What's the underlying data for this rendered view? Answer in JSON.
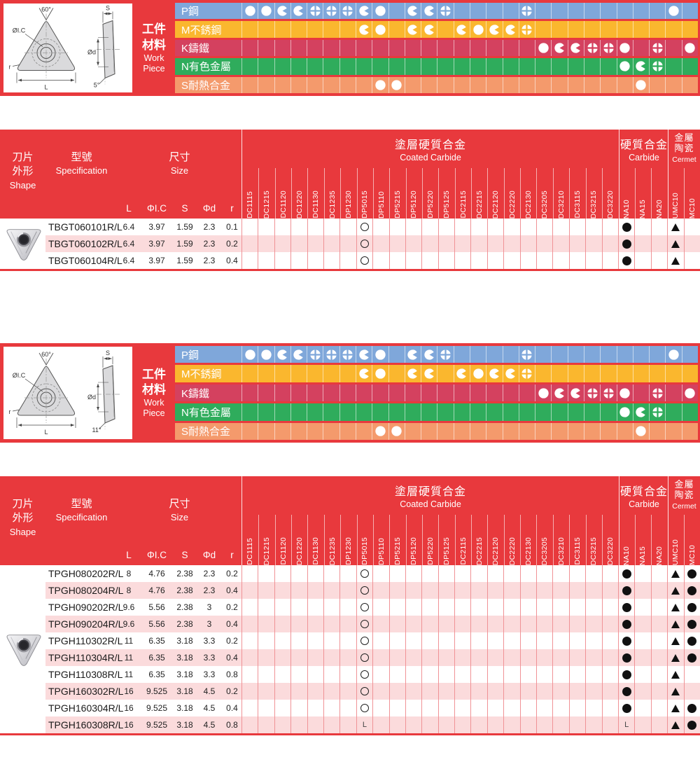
{
  "colors": {
    "header_red": "#E8393D",
    "row_blue": "#7FA7DA",
    "row_yellow": "#FAB72E",
    "row_crimson": "#D4415F",
    "row_green": "#2FAC5C",
    "row_orange": "#F49A6C",
    "stripe_pink": "#FBDBDC",
    "grid_line": "#F09296"
  },
  "symbol_legend": {
    "full": "full-circle",
    "three-quarter": "three-quarter-circle",
    "segmented": "four-segment-circle"
  },
  "materials": {
    "label_zh_1": "工件",
    "label_zh_2": "材料",
    "label_en_1": "Work",
    "label_en_2": "Piece",
    "rows": [
      {
        "label": "P鋼",
        "color": "#7FA7DA",
        "cells": [
          "full",
          "full",
          "three-quarter",
          "three-quarter",
          "segmented",
          "segmented",
          "segmented",
          "three-quarter",
          "full",
          "",
          "three-quarter",
          "three-quarter",
          "segmented",
          "",
          "",
          "",
          "",
          "segmented",
          "",
          "",
          "",
          "",
          "",
          "",
          "",
          "",
          "full",
          ""
        ]
      },
      {
        "label": "M不銹鋼",
        "color": "#FAB72E",
        "cells": [
          "",
          "",
          "",
          "",
          "",
          "",
          "",
          "three-quarter",
          "full",
          "",
          "three-quarter",
          "three-quarter",
          "",
          "three-quarter",
          "full",
          "three-quarter",
          "three-quarter",
          "segmented",
          "",
          "",
          "",
          "",
          "",
          "",
          "",
          "",
          "",
          ""
        ]
      },
      {
        "label": "K鑄鐵",
        "color": "#D4415F",
        "cells": [
          "",
          "",
          "",
          "",
          "",
          "",
          "",
          "",
          "",
          "",
          "",
          "",
          "",
          "",
          "",
          "",
          "",
          "",
          "full",
          "three-quarter",
          "three-quarter",
          "segmented",
          "segmented",
          "full",
          "",
          "segmented",
          "",
          "full"
        ]
      },
      {
        "label": "N有色金屬",
        "color": "#2FAC5C",
        "cells": [
          "",
          "",
          "",
          "",
          "",
          "",
          "",
          "",
          "",
          "",
          "",
          "",
          "",
          "",
          "",
          "",
          "",
          "",
          "",
          "",
          "",
          "",
          "",
          "full",
          "three-quarter",
          "segmented",
          "",
          ""
        ]
      },
      {
        "label": "S耐熱合金",
        "color": "#F49A6C",
        "cells": [
          "",
          "",
          "",
          "",
          "",
          "",
          "",
          "",
          "full",
          "full",
          "",
          "",
          "",
          "",
          "",
          "",
          "",
          "",
          "",
          "",
          "",
          "",
          "",
          "",
          "full",
          "",
          "",
          ""
        ]
      }
    ]
  },
  "table_header": {
    "shape_zh1": "刀片",
    "shape_zh2": "外形",
    "shape_en": "Shape",
    "spec_zh": "型號",
    "spec_en": "Specification",
    "size_zh": "尺寸",
    "size_en": "Size",
    "dims": [
      "L",
      "ΦI.C",
      "S",
      "Φd",
      "r"
    ],
    "groups": [
      {
        "zh": "塗層硬質合金",
        "en": "Coated Carbide",
        "cols": [
          "DC1115",
          "DC1215",
          "DC1120",
          "DC1220",
          "DC1130",
          "DC1235",
          "DP1230",
          "DP5015",
          "DP5110",
          "DP5215",
          "DP5120",
          "DP5220",
          "DP5125",
          "DC2115",
          "DC2215",
          "DC2120",
          "DC2220",
          "DC2130",
          "DC3205",
          "DC3210",
          "DC3115",
          "DC3215",
          "DC3220"
        ]
      },
      {
        "zh": "硬質合金",
        "en": "Carbide",
        "cols": [
          "NA10",
          "NA15",
          "NA20"
        ]
      },
      {
        "zh1": "金屬",
        "zh2": "陶瓷",
        "en": "Cermet",
        "cols": [
          "UMC10",
          "MC10"
        ]
      }
    ]
  },
  "sections": [
    {
      "diagram": {
        "angle": "60°",
        "ic": "ØI.C",
        "r": "r",
        "l": "L",
        "s": "S",
        "d": "Ød",
        "relief": "5°"
      },
      "table": {
        "rows": [
          {
            "spec": "TBGT060101R/L",
            "l": "6.4",
            "ic": "3.97",
            "s": "1.59",
            "d": "2.3",
            "r": "0.1",
            "marks": {
              "DP5015": "open-circle",
              "NA10": "black-circle",
              "UMC10": "black-triangle"
            }
          },
          {
            "spec": "TBGT060102R/L",
            "l": "6.4",
            "ic": "3.97",
            "s": "1.59",
            "d": "2.3",
            "r": "0.2",
            "marks": {
              "DP5015": "open-circle",
              "NA10": "black-circle",
              "UMC10": "black-triangle"
            }
          },
          {
            "spec": "TBGT060104R/L",
            "l": "6.4",
            "ic": "3.97",
            "s": "1.59",
            "d": "2.3",
            "r": "0.4",
            "marks": {
              "DP5015": "open-circle",
              "NA10": "black-circle",
              "UMC10": "black-triangle"
            }
          }
        ]
      }
    },
    {
      "diagram": {
        "angle": "60°",
        "ic": "ØI.C",
        "r": "r",
        "l": "L",
        "s": "S",
        "d": "Ød",
        "relief": "11°"
      },
      "table": {
        "rows": [
          {
            "spec": "TPGH080202R/L",
            "l": "8",
            "ic": "4.76",
            "s": "2.38",
            "d": "2.3",
            "r": "0.2",
            "marks": {
              "DP5015": "open-circle",
              "NA10": "black-circle",
              "UMC10": "black-triangle",
              "MC10": "black-circle"
            }
          },
          {
            "spec": "TPGH080204R/L",
            "l": "8",
            "ic": "4.76",
            "s": "2.38",
            "d": "2.3",
            "r": "0.4",
            "marks": {
              "DP5015": "open-circle",
              "NA10": "black-circle",
              "UMC10": "black-triangle",
              "MC10": "black-circle"
            }
          },
          {
            "spec": "TPGH090202R/L",
            "l": "9.6",
            "ic": "5.56",
            "s": "2.38",
            "d": "3",
            "r": "0.2",
            "marks": {
              "DP5015": "open-circle",
              "NA10": "black-circle",
              "UMC10": "black-triangle",
              "MC10": "black-circle"
            }
          },
          {
            "spec": "TPGH090204R/L",
            "l": "9.6",
            "ic": "5.56",
            "s": "2.38",
            "d": "3",
            "r": "0.4",
            "marks": {
              "DP5015": "open-circle",
              "NA10": "black-circle",
              "UMC10": "black-triangle",
              "MC10": "black-circle"
            }
          },
          {
            "spec": "TPGH110302R/L",
            "l": "11",
            "ic": "6.35",
            "s": "3.18",
            "d": "3.3",
            "r": "0.2",
            "marks": {
              "DP5015": "open-circle",
              "NA10": "black-circle",
              "UMC10": "black-triangle",
              "MC10": "black-circle"
            }
          },
          {
            "spec": "TPGH110304R/L",
            "l": "11",
            "ic": "6.35",
            "s": "3.18",
            "d": "3.3",
            "r": "0.4",
            "marks": {
              "DP5015": "open-circle",
              "NA10": "black-circle",
              "UMC10": "black-triangle",
              "MC10": "black-circle"
            }
          },
          {
            "spec": "TPGH110308R/L",
            "l": "11",
            "ic": "6.35",
            "s": "3.18",
            "d": "3.3",
            "r": "0.8",
            "marks": {
              "DP5015": "open-circle",
              "NA10": "black-circle",
              "UMC10": "black-triangle"
            }
          },
          {
            "spec": "TPGH160302R/L",
            "l": "16",
            "ic": "9.525",
            "s": "3.18",
            "d": "4.5",
            "r": "0.2",
            "marks": {
              "DP5015": "open-circle",
              "NA10": "black-circle",
              "UMC10": "black-triangle"
            }
          },
          {
            "spec": "TPGH160304R/L",
            "l": "16",
            "ic": "9.525",
            "s": "3.18",
            "d": "4.5",
            "r": "0.4",
            "marks": {
              "DP5015": "open-circle",
              "NA10": "black-circle",
              "UMC10": "black-triangle",
              "MC10": "black-circle"
            }
          },
          {
            "spec": "TPGH160308R/L",
            "l": "16",
            "ic": "9.525",
            "s": "3.18",
            "d": "4.5",
            "r": "0.8",
            "marks": {
              "DP5015": "letter-L",
              "NA10": "letter-L",
              "UMC10": "black-triangle",
              "MC10": "black-circle"
            }
          }
        ]
      }
    }
  ]
}
